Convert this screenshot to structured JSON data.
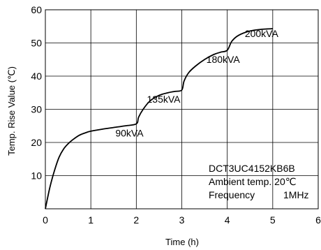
{
  "chart_data": {
    "type": "line",
    "title": "",
    "xlabel": "Time (h)",
    "ylabel": "Temp. Rise Value (℃)",
    "xlim": [
      0,
      6
    ],
    "ylim": [
      0,
      60
    ],
    "x_ticks": [
      "0",
      "1",
      "2",
      "3",
      "4",
      "5",
      "6"
    ],
    "y_ticks": [
      "10",
      "20",
      "30",
      "40",
      "50",
      "60"
    ],
    "grid": true,
    "series": [
      {
        "x": [
          0,
          0.1,
          0.2,
          0.3,
          0.4,
          0.5,
          0.6,
          0.75,
          0.9,
          1.0,
          1.25,
          1.5,
          1.75,
          2.0,
          2.05,
          2.15,
          2.3,
          2.5,
          2.7,
          2.85,
          3.0,
          3.05,
          3.15,
          3.3,
          3.5,
          3.7,
          3.85,
          4.0,
          4.1,
          4.25,
          4.5,
          4.75,
          5.0
        ],
        "y": [
          0,
          6.5,
          11.5,
          15.5,
          18.0,
          19.6,
          20.8,
          22.2,
          23.0,
          23.4,
          24.0,
          24.5,
          25.0,
          25.6,
          27.6,
          30.0,
          32.5,
          34.2,
          35.0,
          35.4,
          35.8,
          38.5,
          41.0,
          43.0,
          45.0,
          46.5,
          47.2,
          47.8,
          50.5,
          52.3,
          53.6,
          54.1,
          54.3
        ]
      }
    ],
    "annotations": [
      {
        "text": "90kVA",
        "x": 2.0,
        "y": 25.6
      },
      {
        "text": "135kVA",
        "x": 3.0,
        "y": 35.8
      },
      {
        "text": "180kVA",
        "x": 4.0,
        "y": 47.8
      },
      {
        "text": "200kVA",
        "x": 5.0,
        "y": 54.3
      }
    ],
    "info_box": {
      "line1": "DCT3UC4152KB6B",
      "line2": "Ambient temp. 20℃",
      "line3_label": "Frequency",
      "line3_value": "1MHz"
    }
  }
}
